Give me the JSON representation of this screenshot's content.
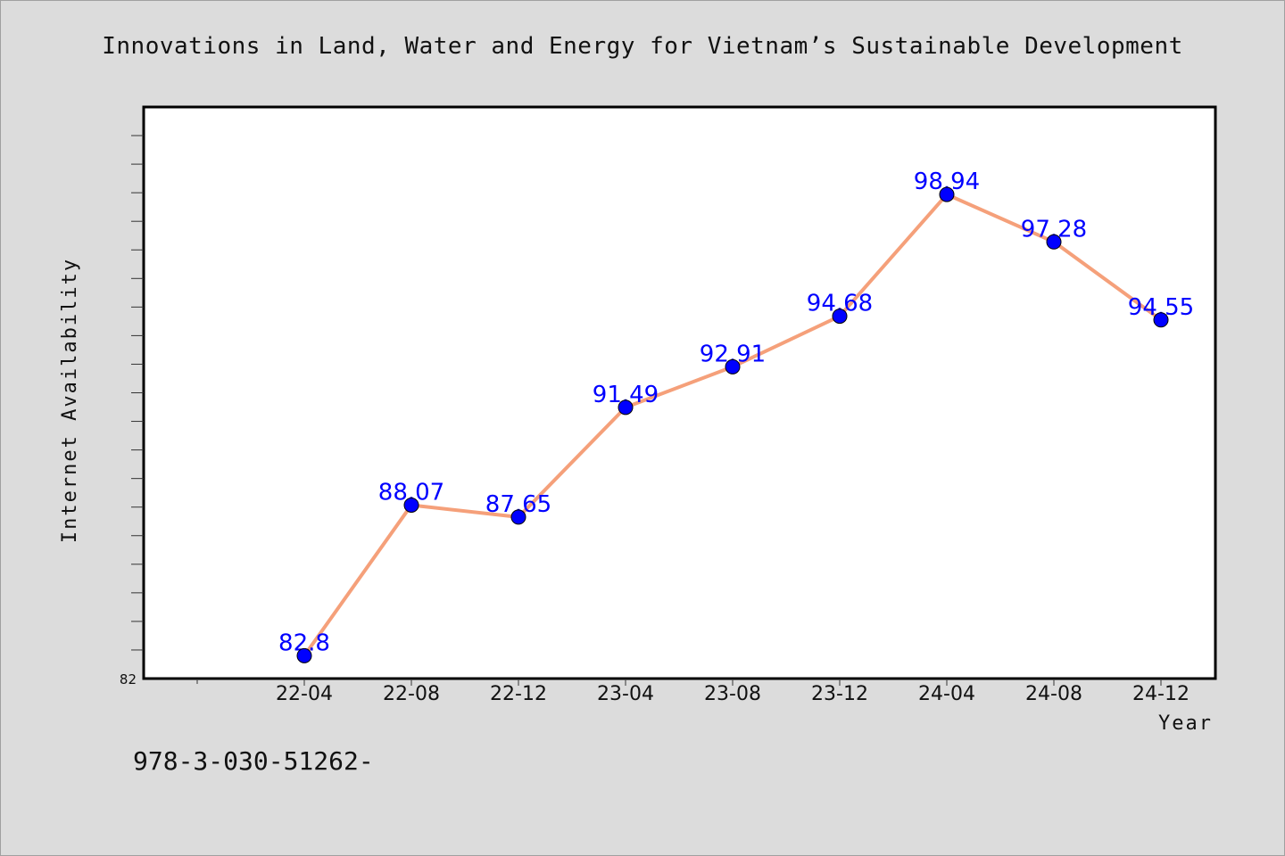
{
  "title": "Innovations in Land, Water and Energy for Vietnam’s Sustainable Development",
  "footer_code": "978-3-030-51262-",
  "chart_data": {
    "type": "line",
    "title": "Innovations in Land, Water and Energy for Vietnam’s Sustainable Development",
    "xlabel": "Year",
    "ylabel": "Internet Availability",
    "categories": [
      "22-04",
      "22-08",
      "22-12",
      "23-04",
      "23-08",
      "23-12",
      "24-04",
      "24-08",
      "24-12"
    ],
    "values": [
      82.8,
      88.07,
      87.65,
      91.49,
      92.91,
      94.68,
      98.94,
      97.28,
      94.55
    ],
    "value_labels": [
      "82.8",
      "88.07",
      "87.65",
      "91.49",
      "92.91",
      "94.68",
      "98.94",
      "97.28",
      "94.55"
    ],
    "ylim": [
      82,
      102
    ],
    "y_tick_label": "82",
    "grid": false,
    "line_color": "#f5a07a",
    "marker_color": "#0000ff",
    "label_color": "#0000ff",
    "background": "#dcdcdc",
    "plot_background": "#ffffff"
  }
}
